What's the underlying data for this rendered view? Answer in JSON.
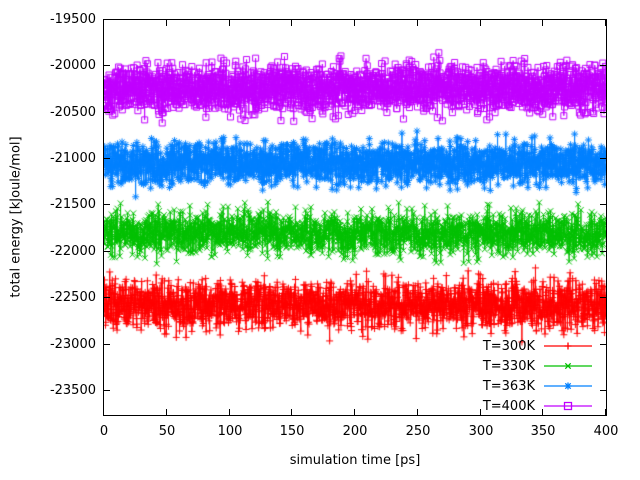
{
  "figure": {
    "background": "#ffffff",
    "text_color": "#000000",
    "border_color": "#000000"
  },
  "chart_data": {
    "type": "line",
    "style": "linespoints-noisy",
    "title": "",
    "xlabel": "simulation time [ps]",
    "ylabel": "total energy [kJoule/mol]",
    "xlim": [
      0,
      400
    ],
    "ylim": [
      -23760,
      -19500
    ],
    "xticks": [
      0,
      50,
      100,
      150,
      200,
      250,
      300,
      350,
      400
    ],
    "yticks": [
      -23500,
      -23000,
      -22500,
      -22000,
      -21500,
      -21000,
      -20500,
      -20000,
      -19500
    ],
    "grid": false,
    "tick_style": "inward-mirrored",
    "legend_position": "bottom-right-inside",
    "points_per_series": 2001,
    "x_step_ps": 0.2,
    "series": [
      {
        "name": "T=300K",
        "color": "#ff0000",
        "marker": "plus",
        "mean_kj_mol": -22580,
        "noise_sigma": 130
      },
      {
        "name": "T=330K",
        "color": "#00c000",
        "marker": "x",
        "mean_kj_mol": -21800,
        "noise_sigma": 115
      },
      {
        "name": "T=363K",
        "color": "#0080ff",
        "marker": "asterisk",
        "mean_kj_mol": -21040,
        "noise_sigma": 115
      },
      {
        "name": "T=400K",
        "color": "#c000ff",
        "marker": "open-square",
        "mean_kj_mol": -20240,
        "noise_sigma": 125
      }
    ]
  }
}
